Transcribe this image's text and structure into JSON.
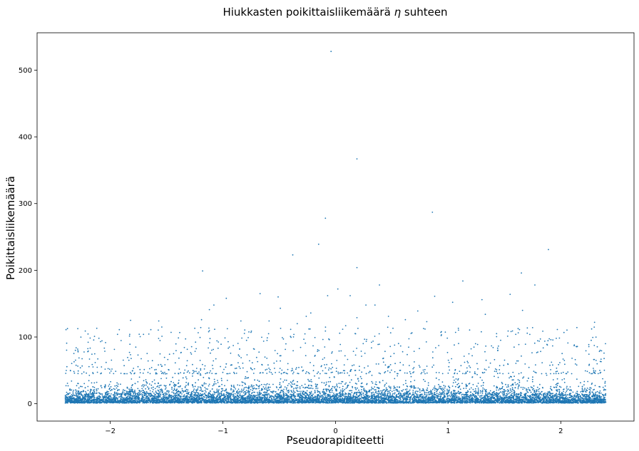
{
  "chart_data": {
    "type": "scatter",
    "title": "Hiukkasten poikittaisliikemäärä η suhteen",
    "title_prefix": "Hiukkasten poikittaisliikemäärä",
    "title_symbol": "η",
    "title_suffix": "suhteen",
    "xlabel": "Pseudorapiditeetti",
    "ylabel": "Poikittaisliikemäärä",
    "xlim": [
      -2.65,
      2.65
    ],
    "ylim": [
      -26,
      556
    ],
    "xticks": [
      {
        "value": -2,
        "label": "−2"
      },
      {
        "value": -1,
        "label": "−1"
      },
      {
        "value": 0,
        "label": "0"
      },
      {
        "value": 1,
        "label": "1"
      },
      {
        "value": 2,
        "label": "2"
      }
    ],
    "yticks": [
      {
        "value": 0,
        "label": "0"
      },
      {
        "value": 100,
        "label": "100"
      },
      {
        "value": 200,
        "label": "200"
      },
      {
        "value": 300,
        "label": "300"
      },
      {
        "value": 400,
        "label": "400"
      },
      {
        "value": 500,
        "label": "500"
      }
    ],
    "grid": false,
    "marker_color": "#1f77b4",
    "eta_range": [
      -2.4,
      2.4
    ],
    "series": [
      {
        "points": [
          [
            -0.04,
            528
          ],
          [
            0.19,
            367
          ],
          [
            0.86,
            287
          ],
          [
            -0.09,
            278
          ],
          [
            1.89,
            231
          ],
          [
            -0.15,
            239
          ],
          [
            -0.38,
            223
          ],
          [
            0.19,
            204
          ],
          [
            -1.18,
            199
          ],
          [
            1.65,
            196
          ],
          [
            1.13,
            184
          ],
          [
            1.77,
            178
          ],
          [
            0.39,
            178
          ],
          [
            0.02,
            172
          ],
          [
            -0.67,
            165
          ],
          [
            1.55,
            164
          ],
          [
            -0.07,
            162
          ],
          [
            0.13,
            162
          ],
          [
            0.88,
            161
          ],
          [
            -0.51,
            160
          ],
          [
            -0.97,
            158
          ],
          [
            1.3,
            156
          ],
          [
            1.04,
            152
          ],
          [
            0.27,
            148
          ],
          [
            0.35,
            148
          ],
          [
            -1.08,
            148
          ],
          [
            -0.49,
            143
          ],
          [
            1.66,
            140
          ],
          [
            -1.12,
            141
          ],
          [
            -0.22,
            136
          ],
          [
            0.73,
            139
          ],
          [
            1.33,
            134
          ],
          [
            -0.26,
            131
          ],
          [
            0.47,
            131
          ],
          [
            0.19,
            129
          ],
          [
            -0.84,
            124
          ],
          [
            -1.57,
            124
          ],
          [
            -1.19,
            126
          ],
          [
            -1.82,
            125
          ],
          [
            2.3,
            122
          ],
          [
            -0.59,
            124
          ],
          [
            0.81,
            123
          ],
          [
            0.62,
            126
          ],
          [
            -0.34,
            120
          ],
          [
            0.09,
            117
          ],
          [
            -2.12,
            113
          ],
          [
            -1.92,
            111
          ],
          [
            -1.64,
            111
          ],
          [
            -1.25,
            113
          ],
          [
            0.51,
            113
          ],
          [
            1.43,
            105
          ],
          [
            -0.09,
            109
          ],
          [
            0.94,
            108
          ],
          [
            1.6,
            104
          ],
          [
            1.96,
            98
          ],
          [
            2.27,
            95
          ],
          [
            -0.4,
            101
          ],
          [
            -0.06,
            97
          ],
          [
            -0.79,
            95
          ],
          [
            -1.46,
            107
          ],
          [
            -2.31,
            80
          ],
          [
            -2.2,
            78
          ],
          [
            2.12,
            88
          ],
          [
            2.35,
            80
          ]
        ]
      }
    ]
  }
}
